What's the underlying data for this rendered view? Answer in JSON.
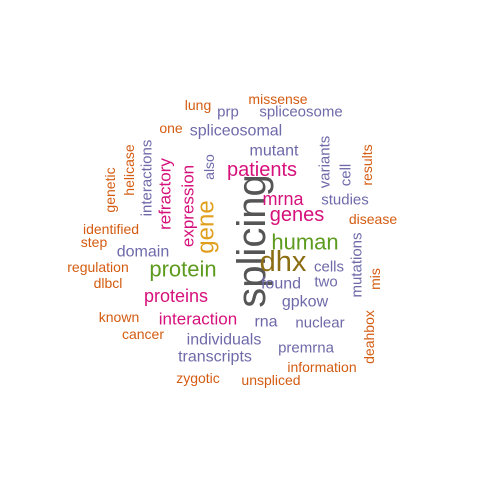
{
  "palette": {
    "gray": "#555555",
    "olive": "#8b6d14",
    "green": "#5d9b1f",
    "gold": "#e0a01e",
    "magenta": "#d6117b",
    "purple": "#6e6aa9",
    "teal": "#2f9b78",
    "orange": "#d45c12"
  },
  "words": [
    {
      "text": "splicing",
      "color": "gray"
    },
    {
      "text": "dhx",
      "color": "olive"
    },
    {
      "text": "human",
      "color": "green"
    },
    {
      "text": "protein",
      "color": "green"
    },
    {
      "text": "gene",
      "color": "gold"
    },
    {
      "text": "patients",
      "color": "magenta"
    },
    {
      "text": "genes",
      "color": "magenta"
    },
    {
      "text": "mrna",
      "color": "magenta"
    },
    {
      "text": "proteins",
      "color": "magenta"
    },
    {
      "text": "interaction",
      "color": "magenta"
    },
    {
      "text": "expression",
      "color": "magenta"
    },
    {
      "text": "refractory",
      "color": "magenta"
    },
    {
      "text": "spliceosomal",
      "color": "purple"
    },
    {
      "text": "mutant",
      "color": "purple"
    },
    {
      "text": "also",
      "color": "purple"
    },
    {
      "text": "interactions",
      "color": "purple"
    },
    {
      "text": "domain",
      "color": "purple"
    },
    {
      "text": "found",
      "color": "purple"
    },
    {
      "text": "gpkow",
      "color": "purple"
    },
    {
      "text": "cells",
      "color": "purple"
    },
    {
      "text": "two",
      "color": "purple"
    },
    {
      "text": "rna",
      "color": "purple"
    },
    {
      "text": "nuclear",
      "color": "purple"
    },
    {
      "text": "individuals",
      "color": "purple"
    },
    {
      "text": "transcripts",
      "color": "purple"
    },
    {
      "text": "premrna",
      "color": "purple"
    },
    {
      "text": "studies",
      "color": "purple"
    },
    {
      "text": "variants",
      "color": "purple"
    },
    {
      "text": "cell",
      "color": "purple"
    },
    {
      "text": "mutations",
      "color": "purple"
    },
    {
      "text": "prp",
      "color": "purple"
    },
    {
      "text": "spliceosome",
      "color": "purple"
    },
    {
      "text": "missense",
      "color": "orange"
    },
    {
      "text": "lung",
      "color": "orange"
    },
    {
      "text": "one",
      "color": "orange"
    },
    {
      "text": "helicase",
      "color": "orange"
    },
    {
      "text": "genetic",
      "color": "orange"
    },
    {
      "text": "identified",
      "color": "orange"
    },
    {
      "text": "step",
      "color": "orange"
    },
    {
      "text": "regulation",
      "color": "orange"
    },
    {
      "text": "dlbcl",
      "color": "orange"
    },
    {
      "text": "known",
      "color": "orange"
    },
    {
      "text": "cancer",
      "color": "orange"
    },
    {
      "text": "results",
      "color": "orange"
    },
    {
      "text": "disease",
      "color": "orange"
    },
    {
      "text": "mis",
      "color": "orange"
    },
    {
      "text": "deahbox",
      "color": "orange"
    },
    {
      "text": "information",
      "color": "orange"
    },
    {
      "text": "zygotic",
      "color": "orange"
    },
    {
      "text": "unspliced",
      "color": "orange"
    }
  ]
}
